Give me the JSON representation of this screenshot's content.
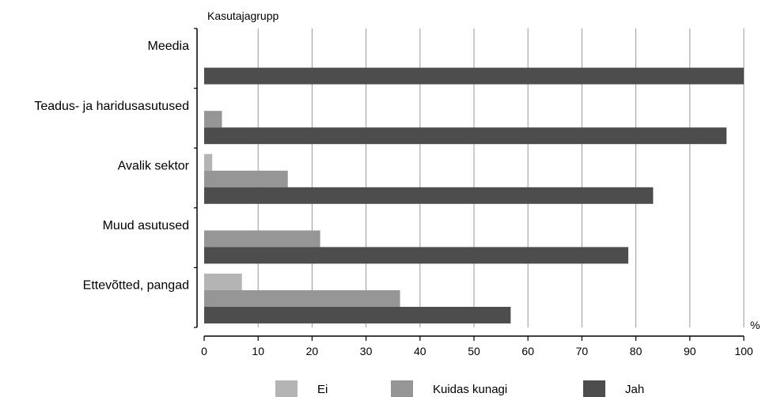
{
  "chart_data": {
    "type": "bar",
    "orientation": "horizontal",
    "title": "",
    "ylabel": "Kasutajagrupp",
    "xlabel": "%",
    "xlim": [
      0,
      100
    ],
    "x_ticks": [
      0,
      10,
      20,
      30,
      40,
      50,
      60,
      70,
      80,
      90,
      100
    ],
    "grid": "vertical",
    "legend_position": "bottom",
    "categories": [
      "Meedia",
      "Teadus- ja haridusasutused",
      "Avalik sektor",
      "Muud asutused",
      "Ettevõtted, pangad"
    ],
    "series": [
      {
        "name": "Ei",
        "color": "#b4b4b4",
        "values": [
          0,
          0,
          1.5,
          0,
          7
        ]
      },
      {
        "name": "Kuidas kunagi",
        "color": "#969696",
        "values": [
          0,
          3.3,
          15.5,
          21.5,
          36.3
        ]
      },
      {
        "name": "Jah",
        "color": "#4d4d4d",
        "values": [
          100,
          96.8,
          83.2,
          78.6,
          56.8
        ]
      }
    ]
  }
}
